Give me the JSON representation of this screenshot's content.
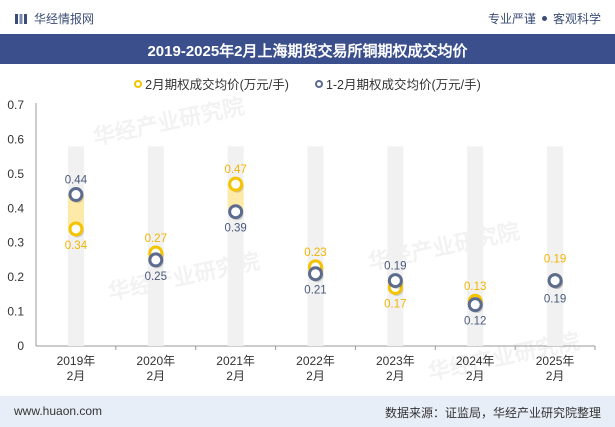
{
  "header": {
    "brand": "华经情报网",
    "tagline_left": "专业严谨",
    "tagline_right": "客观科学"
  },
  "footer": {
    "website": "www.huaon.com",
    "source": "数据来源：证监局，华经产业研究院整理"
  },
  "watermark": "华经产业研究院",
  "colors": {
    "title_bar": "#3a4f8c",
    "series1": "#f5c400",
    "series2": "#5c6b8e",
    "bar": "#f1f1f1",
    "highlight": "#fde9a8"
  },
  "chart_data": {
    "type": "scatter",
    "title": "2019-2025年2月上海期货交易所铜期权成交均价",
    "categories": [
      "2019年\n2月",
      "2020年\n2月",
      "2021年\n2月",
      "2022年\n2月",
      "2023年\n2月",
      "2024年\n2月",
      "2025年\n2月"
    ],
    "series": [
      {
        "name": "2月期权成交均价(万元/手)",
        "values": [
          0.34,
          0.27,
          0.47,
          0.23,
          0.17,
          0.13,
          0.19
        ],
        "labels": [
          "0.34",
          "0.27",
          "0.47",
          "0.23",
          "0.17",
          "0.13",
          "0.19"
        ]
      },
      {
        "name": "1-2月期权成交均价(万元/手)",
        "values": [
          0.44,
          0.25,
          0.39,
          0.21,
          0.19,
          0.12,
          0.19
        ],
        "labels": [
          "0.44",
          "0.25",
          "0.39",
          "0.21",
          "0.19",
          "0.12",
          "0.19"
        ]
      }
    ],
    "ylim": [
      0,
      0.7
    ],
    "yticks": [
      "0",
      "0.1",
      "0.2",
      "0.3",
      "0.4",
      "0.5",
      "0.6",
      "0.7"
    ],
    "legend_position": "top"
  }
}
